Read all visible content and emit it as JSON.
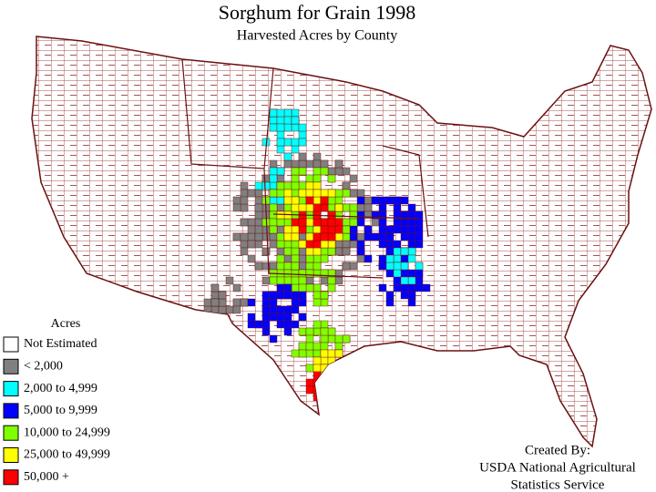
{
  "header": {
    "title": "Sorghum for Grain 1998",
    "subtitle": "Harvested Acres by County"
  },
  "legend": {
    "title": "Acres",
    "items": [
      {
        "label": "Not Estimated",
        "color": "#ffffff"
      },
      {
        "label": "< 2,000",
        "color": "#808080"
      },
      {
        "label": "2,000 to 4,999",
        "color": "#00ffff"
      },
      {
        "label": "5,000 to 9,999",
        "color": "#0000ff"
      },
      {
        "label": "10,000 to 24,999",
        "color": "#80ff00"
      },
      {
        "label": "25,000 to 49,999",
        "color": "#ffff00"
      },
      {
        "label": "50,000 +",
        "color": "#ff0000"
      }
    ]
  },
  "credit": {
    "lines": [
      "Created By:",
      "USDA National Agricultural",
      "Statistics Service"
    ]
  }
}
